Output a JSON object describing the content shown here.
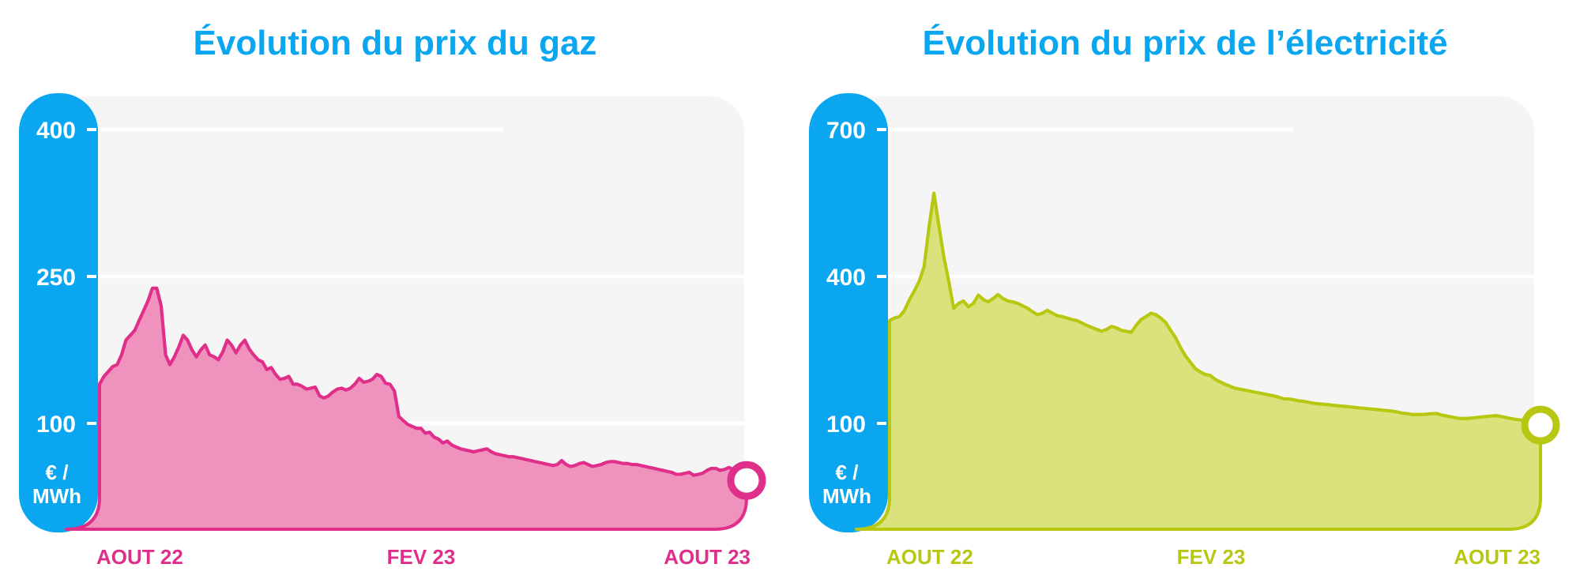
{
  "charts": [
    {
      "title": "Évolution du prix du gaz",
      "unit_line1": "€ /",
      "unit_line2": "MWh",
      "line_color": "#e02f8a",
      "fill_color": "#ef92bd",
      "axis_color": "#0aa6f0",
      "yticks": [
        "400",
        "250",
        "100"
      ],
      "xticks": [
        "AOUT 22",
        "FEV 23",
        "AOUT 23"
      ]
    },
    {
      "title": "Évolution du prix de l’électricité",
      "unit_line1": "€ /",
      "unit_line2": "MWh",
      "line_color": "#b8c812",
      "fill_color": "#d9e27b",
      "axis_color": "#0aa6f0",
      "yticks": [
        "700",
        "400",
        "100"
      ],
      "xticks": [
        "AOUT 22",
        "FEV 23",
        "AOUT 23"
      ]
    }
  ],
  "chart_data": [
    {
      "type": "area",
      "title": "Évolution du prix du gaz",
      "ylabel": "€ / MWh",
      "x_labels": [
        "AOUT 22",
        "FEV 23",
        "AOUT 23"
      ],
      "yticks": [
        100,
        250,
        400
      ],
      "series": [
        {
          "values": [
            140,
            148,
            153,
            158,
            160,
            170,
            185,
            190,
            195,
            205,
            215,
            225,
            238,
            238,
            220,
            170,
            160,
            168,
            178,
            190,
            185,
            175,
            168,
            175,
            180,
            170,
            168,
            165,
            173,
            185,
            180,
            172,
            180,
            185,
            176,
            170,
            165,
            163,
            155,
            157,
            150,
            145,
            146,
            148,
            140,
            140,
            138,
            135,
            136,
            137,
            128,
            126,
            128,
            132,
            135,
            136,
            134,
            136,
            140,
            146,
            142,
            143,
            145,
            150,
            148,
            141,
            140,
            133,
            107,
            103,
            99,
            97,
            95,
            95,
            90,
            91,
            86,
            84,
            80,
            82,
            78,
            76,
            74,
            73,
            72,
            71,
            72,
            73,
            74,
            71,
            69,
            68,
            67,
            66,
            66,
            65,
            64,
            63,
            62,
            61,
            60,
            59,
            58,
            57,
            58,
            62,
            58,
            56,
            57,
            59,
            60,
            58,
            56,
            57,
            58,
            60,
            61,
            61,
            60,
            59,
            59,
            58,
            58,
            57,
            56,
            55,
            54,
            53,
            52,
            51,
            50,
            48,
            48,
            49,
            50,
            47,
            48,
            49,
            52,
            54,
            54,
            52,
            53,
            55,
            53,
            50,
            47,
            45
          ]
        }
      ]
    },
    {
      "type": "area",
      "title": "Évolution du prix de l’électricité",
      "ylabel": "€ / MWh",
      "x_labels": [
        "AOUT 22",
        "FEV 23",
        "AOUT 23"
      ],
      "yticks": [
        100,
        400,
        700
      ],
      "series": [
        {
          "values": [
            310,
            315,
            318,
            330,
            352,
            370,
            390,
            420,
            500,
            570,
            505,
            440,
            390,
            335,
            345,
            350,
            338,
            345,
            362,
            353,
            348,
            355,
            363,
            355,
            350,
            348,
            345,
            340,
            335,
            328,
            322,
            325,
            331,
            325,
            320,
            318,
            315,
            312,
            310,
            305,
            300,
            296,
            292,
            288,
            292,
            298,
            295,
            290,
            288,
            286,
            300,
            312,
            318,
            325,
            322,
            315,
            306,
            290,
            275,
            255,
            238,
            225,
            212,
            205,
            200,
            198,
            190,
            185,
            180,
            176,
            172,
            170,
            168,
            166,
            164,
            162,
            160,
            158,
            156,
            153,
            150,
            150,
            148,
            146,
            145,
            143,
            141,
            140,
            139,
            138,
            137,
            136,
            135,
            134,
            133,
            132,
            131,
            130,
            129,
            128,
            127,
            126,
            125,
            123,
            121,
            120,
            118,
            118,
            118,
            119,
            120,
            120,
            117,
            115,
            113,
            111,
            110,
            110,
            111,
            112,
            113,
            114,
            115,
            116,
            114,
            112,
            110,
            108,
            107,
            106,
            105,
            103,
            103
          ]
        }
      ]
    }
  ]
}
